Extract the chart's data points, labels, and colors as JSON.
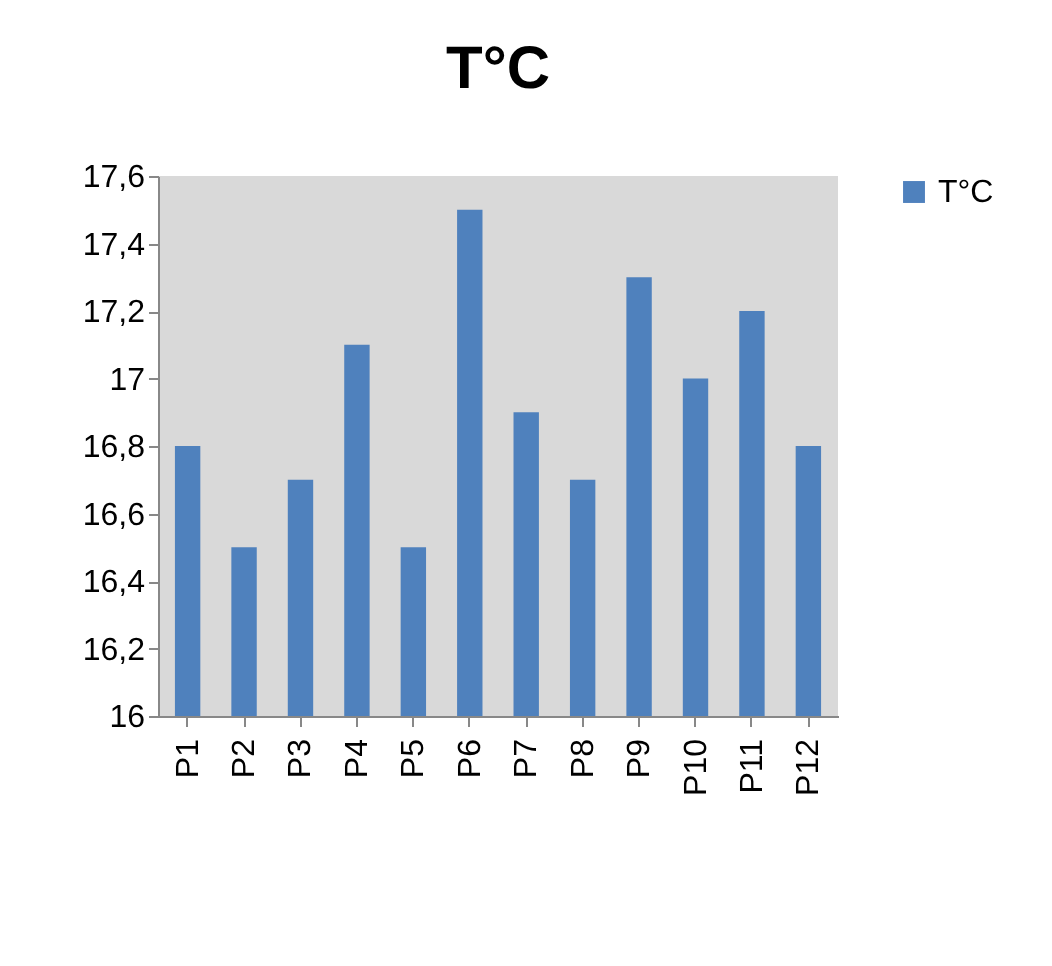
{
  "chart_data": {
    "type": "bar",
    "title": "T°C",
    "categories": [
      "P1",
      "P2",
      "P3",
      "P4",
      "P5",
      "P6",
      "P7",
      "P8",
      "P9",
      "P10",
      "P11",
      "P12"
    ],
    "series": [
      {
        "name": "T°C",
        "color": "#4f81bd",
        "values": [
          16.8,
          16.5,
          16.7,
          17.1,
          16.5,
          17.5,
          16.9,
          16.7,
          17.3,
          17.0,
          17.2,
          16.8
        ]
      }
    ],
    "ylim": [
      16,
      17.6
    ],
    "yticks": [
      {
        "value": 16,
        "label": "16"
      },
      {
        "value": 16.2,
        "label": "16,2"
      },
      {
        "value": 16.4,
        "label": "16,4"
      },
      {
        "value": 16.6,
        "label": "16,6"
      },
      {
        "value": 16.8,
        "label": "16,8"
      },
      {
        "value": 17,
        "label": "17"
      },
      {
        "value": 17.2,
        "label": "17,2"
      },
      {
        "value": 17.4,
        "label": "17,4"
      },
      {
        "value": 17.6,
        "label": "17,6"
      }
    ],
    "grid": false,
    "legend": "right"
  }
}
